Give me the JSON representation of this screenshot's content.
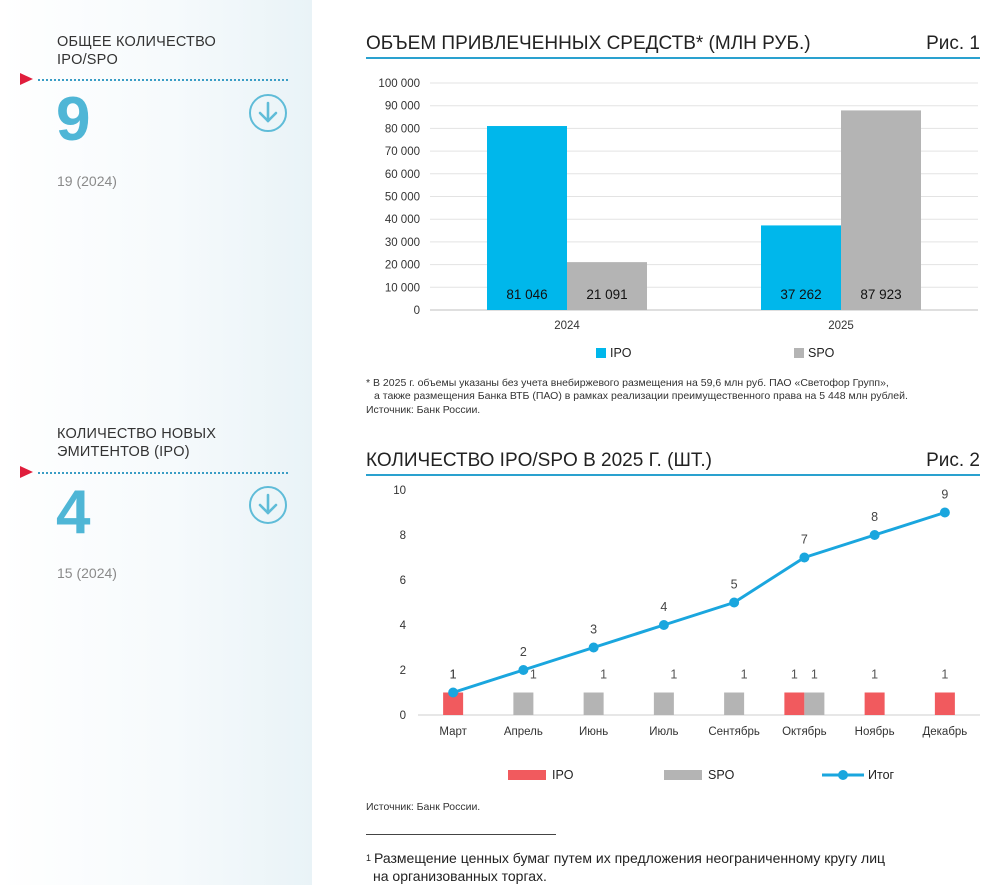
{
  "sidebar": {
    "kpis": [
      {
        "title_line1": "ОБЩЕЕ КОЛИЧЕСТВО",
        "title_line2": "IPO/SPO",
        "value": "9",
        "previous": "19 (2024)"
      },
      {
        "title_line1": "КОЛИЧЕСТВО НОВЫХ",
        "title_line2": "ЭМИТЕНТОВ (IPO)",
        "value": "4",
        "previous": "15 (2024)"
      }
    ]
  },
  "fig1": {
    "title": "ОБЪЕМ ПРИВЛЕЧЕННЫХ СРЕДСТВ* (МЛН РУБ.)",
    "number": "Рис. 1",
    "note_line1": "* В 2025 г. объемы указаны без учета внебиржевого размещения на 59,6 млн руб. ПАО «Светофор Групп»,",
    "note_line2": "а также размещения Банка ВТБ (ПАО) в рамках реализации преимущественного права на 5 448 млн рублей.",
    "source": "Источник: Банк России."
  },
  "fig2": {
    "title": "КОЛИЧЕСТВО IPO/SPO В 2025 Г. (ШТ.)",
    "number": "Рис. 2",
    "source": "Источник: Банк России."
  },
  "footnote": {
    "marker": "1",
    "line1": "Размещение ценных бумаг путем их предложения неограниченному кругу лиц",
    "line2": "на организованных торгах."
  },
  "colors": {
    "ipo1": "#00b7eb",
    "spo": "#b4b4b4",
    "ipo2": "#f15a5e",
    "total": "#1aa6de",
    "accent": "#2aa1cf"
  },
  "chart_data": [
    {
      "type": "bar",
      "categories": [
        "2024",
        "2025"
      ],
      "series": [
        {
          "name": "IPO",
          "values": [
            81046,
            37262
          ],
          "labels": [
            "81 046",
            "37 262"
          ]
        },
        {
          "name": "SPO",
          "values": [
            21091,
            87923
          ],
          "labels": [
            "21 091",
            "87 923"
          ]
        }
      ],
      "ylim": [
        0,
        100000
      ],
      "yticks": [
        0,
        10000,
        20000,
        30000,
        40000,
        50000,
        60000,
        70000,
        80000,
        90000,
        100000
      ],
      "ytick_labels": [
        "0",
        "10 000",
        "20 000",
        "30 000",
        "40 000",
        "50 000",
        "60 000",
        "70 000",
        "80 000",
        "90 000",
        "100 000"
      ],
      "grid": true,
      "legend": "bottom"
    },
    {
      "type": "bar+line",
      "categories": [
        "Март",
        "Апрель",
        "Июнь",
        "Июль",
        "Сентябрь",
        "Октябрь",
        "Ноябрь",
        "Декабрь"
      ],
      "series": [
        {
          "name": "IPO",
          "type": "bar",
          "values": [
            1,
            0,
            0,
            0,
            0,
            1,
            1,
            1
          ]
        },
        {
          "name": "SPO",
          "type": "bar",
          "values": [
            0,
            1,
            1,
            1,
            1,
            1,
            0,
            0
          ]
        },
        {
          "name": "Итог",
          "type": "line",
          "values": [
            1,
            2,
            3,
            4,
            5,
            7,
            8,
            9
          ]
        }
      ],
      "ylim": [
        0,
        10
      ],
      "yticks": [
        0,
        2,
        4,
        6,
        8,
        10
      ],
      "grid": false,
      "legend": "bottom"
    }
  ]
}
